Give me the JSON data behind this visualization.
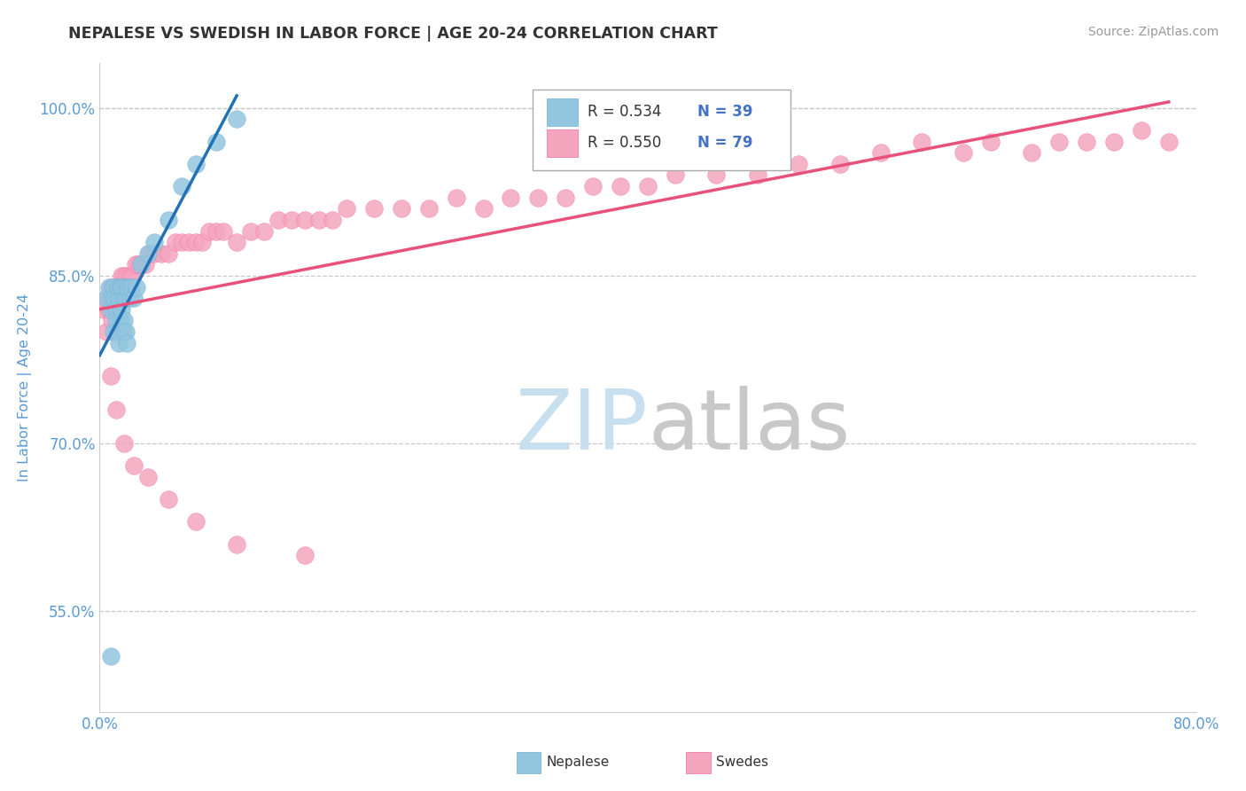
{
  "title": "NEPALESE VS SWEDISH IN LABOR FORCE | AGE 20-24 CORRELATION CHART",
  "source_text": "Source: ZipAtlas.com",
  "ylabel": "In Labor Force | Age 20-24",
  "xlim": [
    0.0,
    0.8
  ],
  "ylim": [
    0.46,
    1.04
  ],
  "x_ticks": [
    0.0,
    0.2,
    0.4,
    0.6,
    0.8
  ],
  "x_tick_labels": [
    "0.0%",
    "",
    "",
    "",
    "80.0%"
  ],
  "y_ticks": [
    0.55,
    0.7,
    0.85,
    1.0
  ],
  "y_tick_labels": [
    "55.0%",
    "70.0%",
    "85.0%",
    "100.0%"
  ],
  "nepalese_x": [
    0.005,
    0.007,
    0.008,
    0.009,
    0.01,
    0.01,
    0.011,
    0.012,
    0.012,
    0.013,
    0.013,
    0.014,
    0.014,
    0.015,
    0.015,
    0.016,
    0.016,
    0.017,
    0.017,
    0.018,
    0.018,
    0.019,
    0.019,
    0.02,
    0.02,
    0.021,
    0.022,
    0.023,
    0.025,
    0.027,
    0.03,
    0.035,
    0.04,
    0.05,
    0.06,
    0.07,
    0.085,
    0.1,
    0.008
  ],
  "nepalese_y": [
    0.83,
    0.84,
    0.82,
    0.83,
    0.84,
    0.8,
    0.83,
    0.82,
    0.81,
    0.84,
    0.8,
    0.83,
    0.79,
    0.84,
    0.81,
    0.84,
    0.82,
    0.83,
    0.8,
    0.84,
    0.81,
    0.83,
    0.8,
    0.84,
    0.79,
    0.84,
    0.83,
    0.84,
    0.83,
    0.84,
    0.86,
    0.87,
    0.88,
    0.9,
    0.93,
    0.95,
    0.97,
    0.99,
    0.51
  ],
  "swedes_x": [
    0.003,
    0.005,
    0.006,
    0.007,
    0.008,
    0.009,
    0.01,
    0.011,
    0.012,
    0.013,
    0.014,
    0.015,
    0.016,
    0.017,
    0.018,
    0.019,
    0.02,
    0.022,
    0.024,
    0.026,
    0.028,
    0.03,
    0.033,
    0.036,
    0.04,
    0.045,
    0.05,
    0.055,
    0.06,
    0.065,
    0.07,
    0.075,
    0.08,
    0.085,
    0.09,
    0.1,
    0.11,
    0.12,
    0.13,
    0.14,
    0.15,
    0.16,
    0.17,
    0.18,
    0.2,
    0.22,
    0.24,
    0.26,
    0.28,
    0.3,
    0.32,
    0.34,
    0.36,
    0.38,
    0.4,
    0.42,
    0.45,
    0.48,
    0.51,
    0.54,
    0.57,
    0.6,
    0.63,
    0.65,
    0.68,
    0.7,
    0.72,
    0.74,
    0.76,
    0.78,
    0.008,
    0.012,
    0.018,
    0.025,
    0.035,
    0.05,
    0.07,
    0.1,
    0.15
  ],
  "swedes_y": [
    0.82,
    0.8,
    0.83,
    0.82,
    0.84,
    0.81,
    0.84,
    0.83,
    0.82,
    0.84,
    0.83,
    0.84,
    0.85,
    0.83,
    0.85,
    0.84,
    0.85,
    0.85,
    0.85,
    0.86,
    0.86,
    0.86,
    0.86,
    0.87,
    0.87,
    0.87,
    0.87,
    0.88,
    0.88,
    0.88,
    0.88,
    0.88,
    0.89,
    0.89,
    0.89,
    0.88,
    0.89,
    0.89,
    0.9,
    0.9,
    0.9,
    0.9,
    0.9,
    0.91,
    0.91,
    0.91,
    0.91,
    0.92,
    0.91,
    0.92,
    0.92,
    0.92,
    0.93,
    0.93,
    0.93,
    0.94,
    0.94,
    0.94,
    0.95,
    0.95,
    0.96,
    0.97,
    0.96,
    0.97,
    0.96,
    0.97,
    0.97,
    0.97,
    0.98,
    0.97,
    0.76,
    0.73,
    0.7,
    0.68,
    0.67,
    0.65,
    0.63,
    0.61,
    0.6
  ],
  "nepalese_color": "#92c5de",
  "swedes_color": "#f4a6bf",
  "nepalese_edge_color": "#6baed6",
  "swedes_edge_color": "#f768a1",
  "nepalese_line_color": "#2171b5",
  "swedes_line_color": "#e8527a",
  "background_color": "#ffffff",
  "grid_color": "#c8c8c8",
  "title_color": "#333333",
  "axis_label_color": "#5b9bd5",
  "tick_label_color": "#5b9bd5",
  "legend_R_color": "#333333",
  "legend_N_color": "#4472c4",
  "watermark_zip_color": "#c8dff0",
  "watermark_atlas_color": "#c8c8c8"
}
